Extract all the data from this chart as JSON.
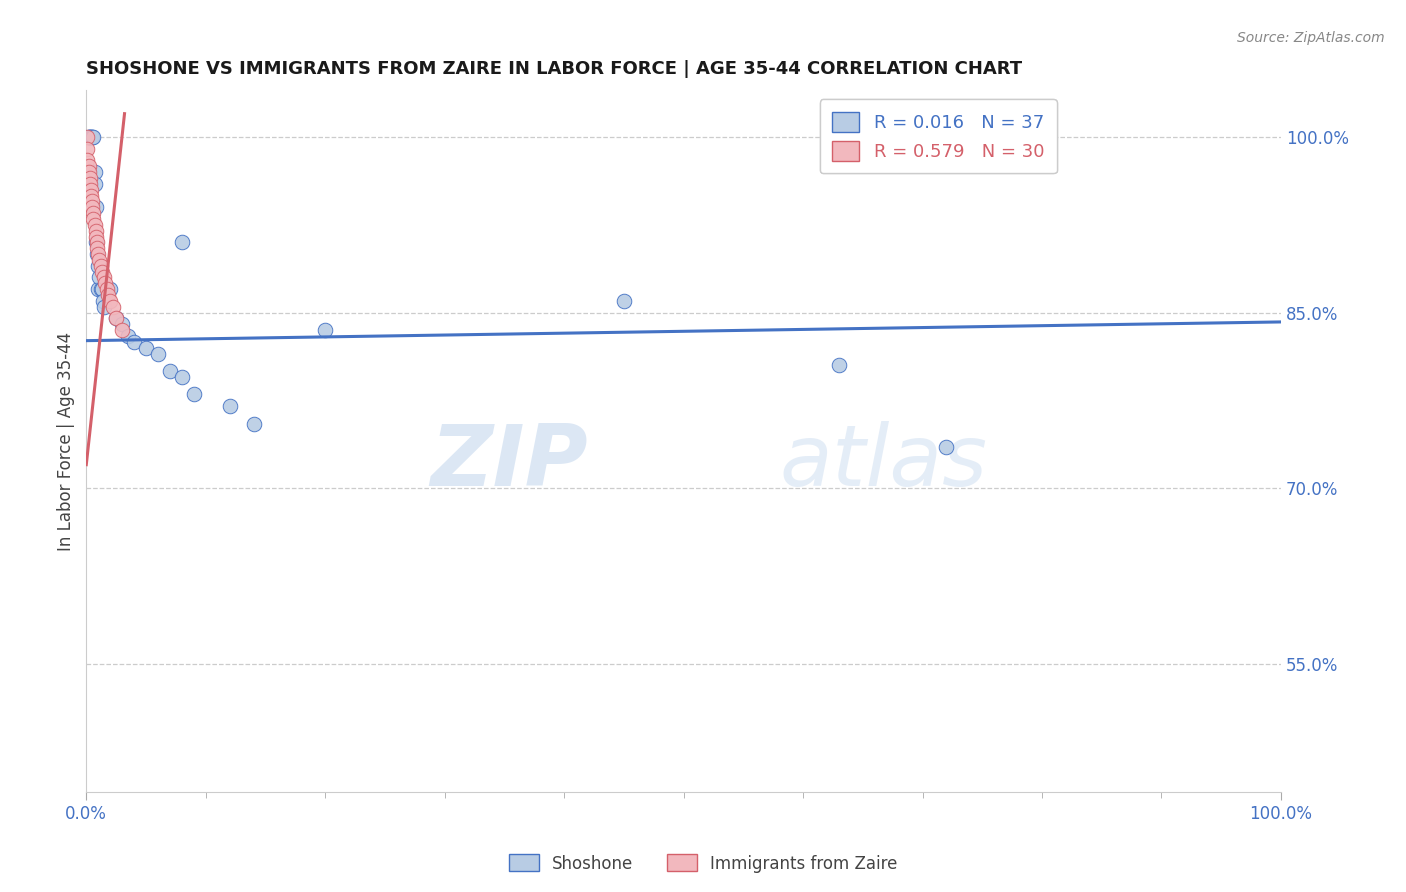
{
  "title": "SHOSHONE VS IMMIGRANTS FROM ZAIRE IN LABOR FORCE | AGE 35-44 CORRELATION CHART",
  "source_text": "Source: ZipAtlas.com",
  "ylabel": "In Labor Force | Age 35-44",
  "y_tick_values": [
    0.55,
    0.7,
    0.85,
    1.0
  ],
  "xlim": [
    0.0,
    1.0
  ],
  "ylim": [
    0.44,
    1.04
  ],
  "bottom_legend": [
    "Shoshone",
    "Immigrants from Zaire"
  ],
  "blue_color": "#4472c4",
  "pink_color": "#d4606a",
  "blue_fill": "#b8cce4",
  "pink_fill": "#f2b8be",
  "shoshone_x": [
    0.002,
    0.002,
    0.002,
    0.003,
    0.004,
    0.005,
    0.005,
    0.006,
    0.007,
    0.007,
    0.008,
    0.008,
    0.009,
    0.01,
    0.01,
    0.011,
    0.012,
    0.013,
    0.014,
    0.015,
    0.02,
    0.025,
    0.03,
    0.035,
    0.04,
    0.05,
    0.06,
    0.07,
    0.08,
    0.09,
    0.12,
    0.45,
    0.63,
    0.72,
    0.08,
    0.14,
    0.2
  ],
  "shoshone_y": [
    1.0,
    1.0,
    1.0,
    1.0,
    1.0,
    1.0,
    1.0,
    1.0,
    0.97,
    0.96,
    0.94,
    0.91,
    0.9,
    0.89,
    0.87,
    0.88,
    0.87,
    0.87,
    0.86,
    0.855,
    0.87,
    0.845,
    0.84,
    0.83,
    0.825,
    0.82,
    0.815,
    0.8,
    0.795,
    0.78,
    0.77,
    0.86,
    0.805,
    0.735,
    0.91,
    0.755,
    0.835
  ],
  "zaire_x": [
    0.001,
    0.001,
    0.001,
    0.002,
    0.002,
    0.003,
    0.003,
    0.004,
    0.004,
    0.005,
    0.005,
    0.006,
    0.006,
    0.007,
    0.008,
    0.008,
    0.009,
    0.009,
    0.01,
    0.011,
    0.012,
    0.013,
    0.015,
    0.016,
    0.017,
    0.018,
    0.02,
    0.022,
    0.025,
    0.03
  ],
  "zaire_y": [
    1.0,
    0.99,
    0.98,
    0.975,
    0.97,
    0.965,
    0.96,
    0.955,
    0.95,
    0.945,
    0.94,
    0.935,
    0.93,
    0.925,
    0.92,
    0.915,
    0.91,
    0.905,
    0.9,
    0.895,
    0.89,
    0.885,
    0.88,
    0.875,
    0.87,
    0.865,
    0.86,
    0.855,
    0.845,
    0.835
  ],
  "blue_trend_x": [
    0.0,
    1.0
  ],
  "blue_trend_y": [
    0.826,
    0.842
  ],
  "pink_trend_x": [
    0.0,
    0.032
  ],
  "pink_trend_y": [
    0.72,
    1.02
  ],
  "watermark_zip": "ZIP",
  "watermark_atlas": "atlas",
  "background_color": "#ffffff",
  "grid_color": "#cccccc",
  "title_color": "#1a1a1a",
  "axis_label_color": "#444444",
  "tick_color": "#4472c4",
  "source_color": "#888888",
  "legend_R1": "R = 0.016",
  "legend_N1": "N = 37",
  "legend_R2": "R = 0.579",
  "legend_N2": "N = 30"
}
